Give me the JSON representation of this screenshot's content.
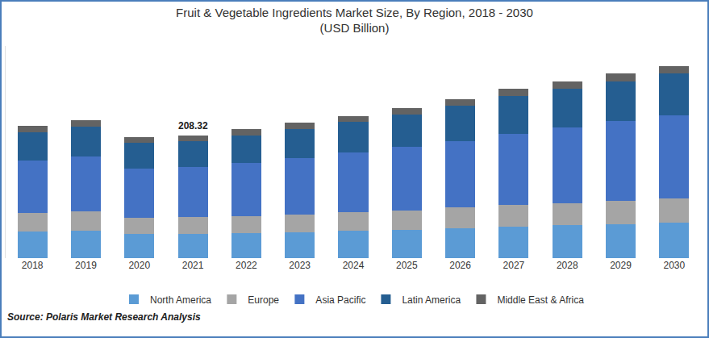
{
  "chart_data": {
    "type": "bar",
    "title": "Fruit & Vegetable Ingredients Market Size, By Region, 2018 - 2030",
    "subtitle": "(USD Billion)",
    "source": "Source: Polaris Market Research Analysis",
    "categories": [
      "2018",
      "2019",
      "2020",
      "2021",
      "2022",
      "2023",
      "2024",
      "2025",
      "2026",
      "2027",
      "2028",
      "2029",
      "2030"
    ],
    "series": [
      {
        "name": "North America",
        "color": "#5b9bd5",
        "values": [
          45.5,
          46.9,
          41.4,
          41.4,
          42.8,
          44.2,
          46.9,
          48.3,
          51.1,
          53.8,
          56.6,
          58.0,
          60.7
        ]
      },
      {
        "name": "Europe",
        "color": "#a5a5a5",
        "values": [
          31.7,
          33.1,
          27.6,
          29.0,
          29.0,
          30.4,
          31.7,
          33.1,
          34.5,
          35.9,
          35.9,
          38.6,
          40.0
        ]
      },
      {
        "name": "Asia Pacific",
        "color": "#4472c4",
        "values": [
          88.3,
          92.5,
          82.8,
          84.0,
          89.7,
          95.2,
          100.7,
          107.6,
          113.2,
          121.4,
          129.7,
          136.6,
          142.1
        ]
      },
      {
        "name": "Latin America",
        "color": "#255e91",
        "values": [
          48.3,
          51.1,
          44.2,
          44.2,
          46.9,
          49.7,
          52.4,
          55.2,
          59.3,
          63.5,
          64.9,
          66.2,
          70.4
        ]
      },
      {
        "name": "Middle East & Africa",
        "color": "#636363",
        "values": [
          11.0,
          11.0,
          9.7,
          9.72,
          11.0,
          11.0,
          9.7,
          11.0,
          11.0,
          12.4,
          12.4,
          13.8,
          12.4
        ]
      }
    ],
    "annotations": [
      {
        "text": "208.32",
        "x": "2021"
      }
    ],
    "ylim": [
      0,
      360
    ],
    "yticks": [],
    "stacked": true,
    "grid": false,
    "legend": "bottom",
    "tick_labels": "x"
  }
}
